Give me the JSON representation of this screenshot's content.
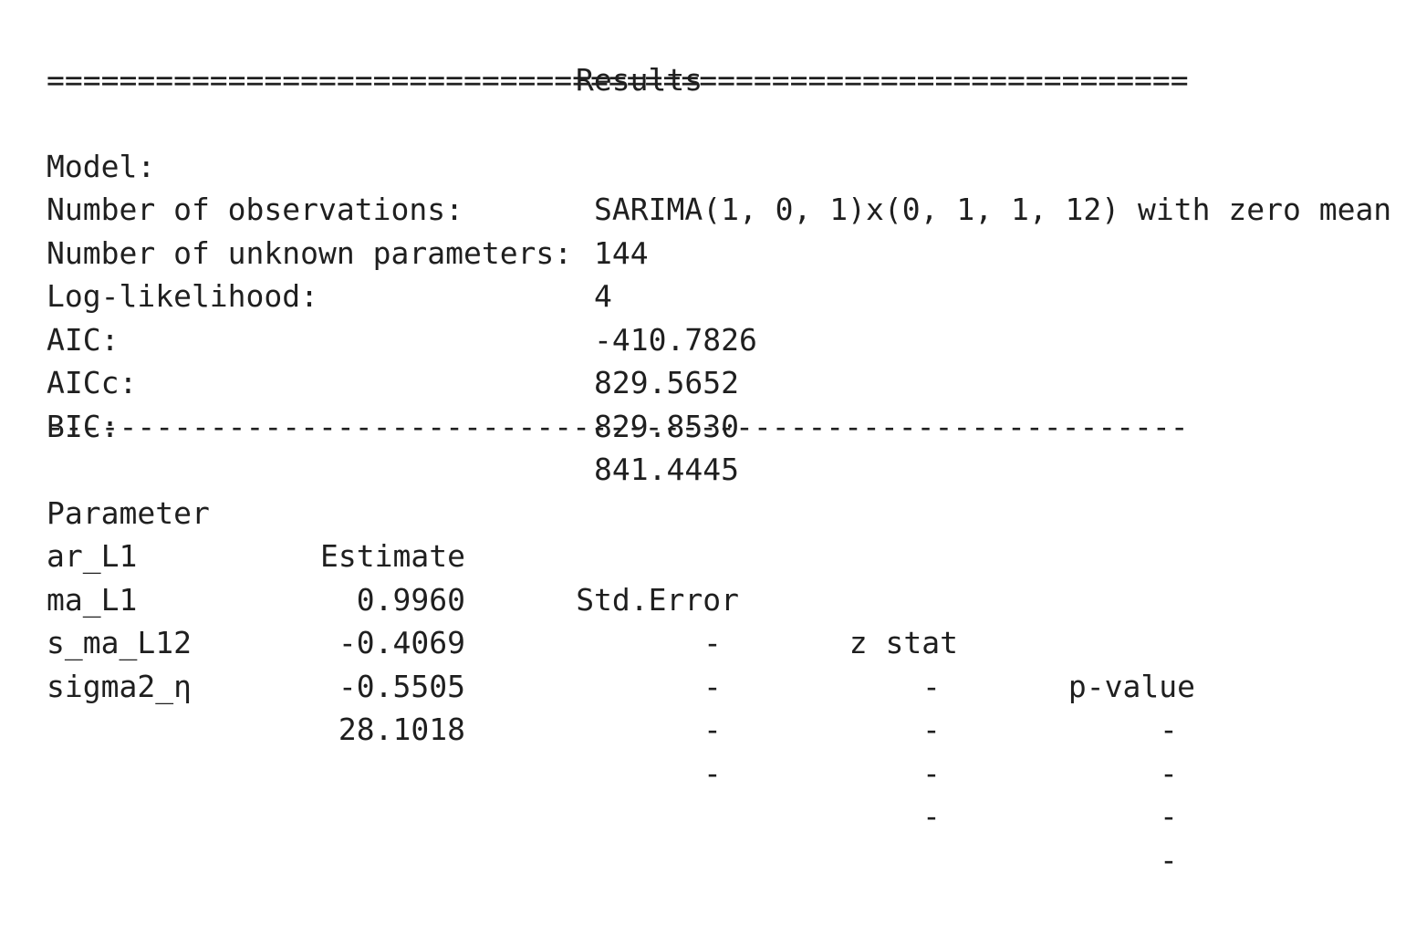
{
  "title": "Results",
  "rule_double": "===============================================================",
  "rule_single": "---------------------------------------------------------------",
  "summary": [
    {
      "label": "Model:",
      "value": "SARIMA(1, 0, 1)x(0, 1, 1, 12) with zero mean"
    },
    {
      "label": "Number of observations:",
      "value": "144"
    },
    {
      "label": "Number of unknown parameters:",
      "value": "4"
    },
    {
      "label": "Log-likelihood:",
      "value": "-410.7826"
    },
    {
      "label": "AIC:",
      "value": "829.5652"
    },
    {
      "label": "AICc:",
      "value": "829.8530"
    },
    {
      "label": "BIC:",
      "value": "841.4445"
    }
  ],
  "table": {
    "headers": [
      "Parameter",
      "Estimate",
      "Std.Error",
      "z stat",
      "p-value"
    ],
    "rows": [
      {
        "parameter": "ar_L1",
        "estimate": "0.9960",
        "std_error": "-",
        "z_stat": "-",
        "p_value": "-"
      },
      {
        "parameter": "ma_L1",
        "estimate": "-0.4069",
        "std_error": "-",
        "z_stat": "-",
        "p_value": "-"
      },
      {
        "parameter": "s_ma_L12",
        "estimate": "-0.5505",
        "std_error": "-",
        "z_stat": "-",
        "p_value": "-"
      },
      {
        "parameter": "sigma2_η",
        "estimate": "28.1018",
        "std_error": "-",
        "z_stat": "-",
        "p_value": "-"
      }
    ]
  }
}
